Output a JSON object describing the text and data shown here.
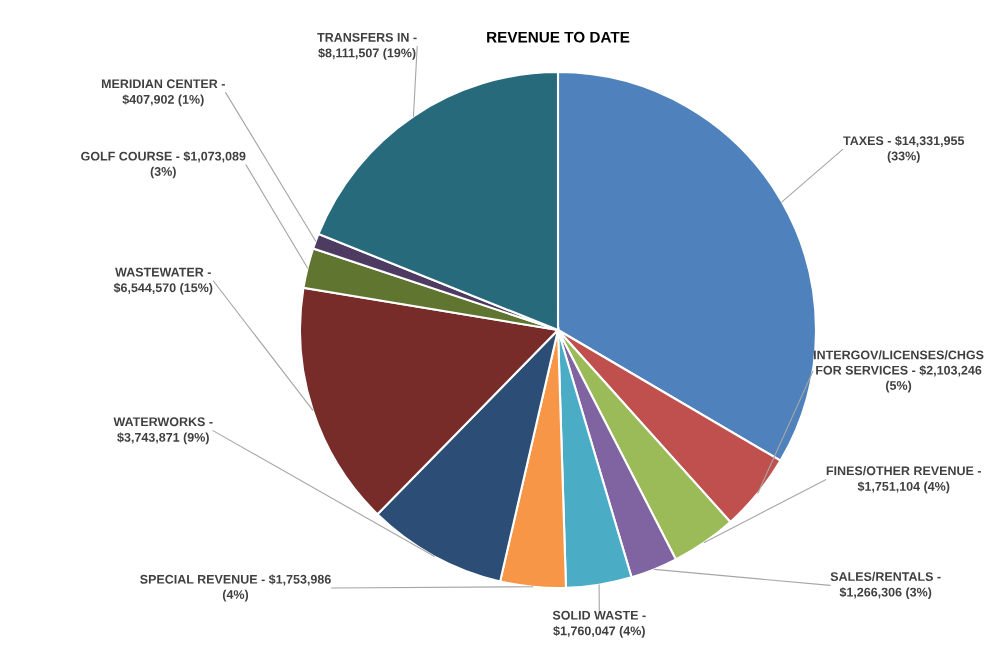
{
  "chart_data": {
    "type": "pie",
    "title": "REVENUE TO DATE",
    "categories": [
      "TAXES - $14,331,955\n(33%)",
      "INTERGOV/LICENSES/CHGS\nFOR SERVICES - $2,103,246\n(5%)",
      "FINES/OTHER REVENUE -\n$1,751,104 (4%)",
      "SALES/RENTALS -\n$1,266,306 (3%)",
      "SOLID WASTE -\n$1,760,047 (4%)",
      "SPECIAL REVENUE - $1,753,986\n(4%)",
      "WATERWORKS -\n$3,743,871 (9%)",
      "WASTEWATER -\n$6,544,570 (15%)",
      "GOLF COURSE - $1,073,089\n(3%)",
      "MERIDIAN CENTER -\n$407,902 (1%)",
      "TRANSFERS IN -\n$8,111,507 (19%)"
    ],
    "values": [
      14331955,
      2103246,
      1751104,
      1266306,
      1760047,
      1753986,
      3743871,
      6544570,
      1073089,
      407902,
      8111507
    ],
    "colors": [
      "#4f81bd",
      "#c0504d",
      "#9bbb59",
      "#8064a2",
      "#4bacc6",
      "#f79646",
      "#2c4d75",
      "#772c2a",
      "#5f7530",
      "#4d3b62",
      "#276a7c"
    ],
    "legend": false
  }
}
